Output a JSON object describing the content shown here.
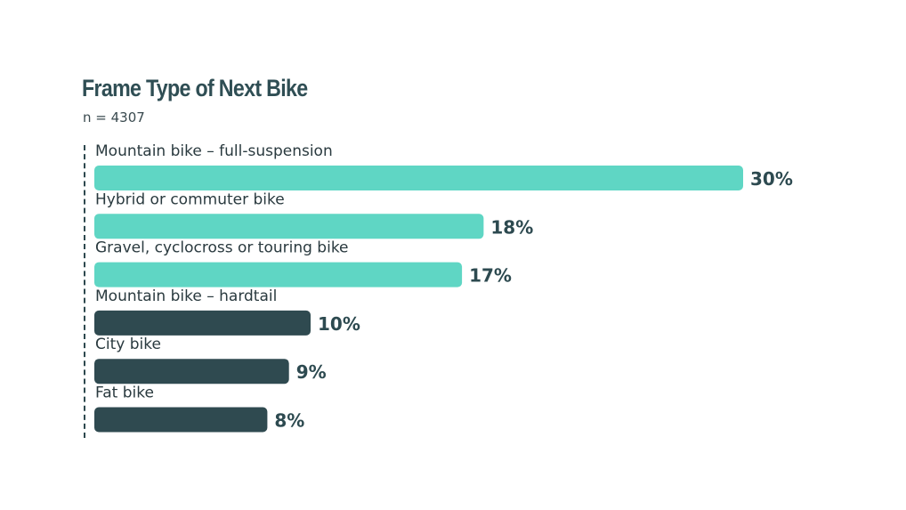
{
  "chart_data": {
    "type": "bar",
    "orientation": "horizontal",
    "title": "Frame Type of Next Bike",
    "subtitle": "n = 4307",
    "categories": [
      "Mountain bike – full-suspension",
      "Hybrid or commuter bike",
      "Gravel, cyclocross or touring bike",
      "Mountain bike – hardtail",
      "City bike",
      "Fat bike"
    ],
    "values": [
      30,
      18,
      17,
      10,
      9,
      8
    ],
    "value_labels": [
      "30%",
      "18%",
      "17%",
      "10%",
      "9%",
      "8%"
    ],
    "bar_colors": [
      "#5fd6c4",
      "#5fd6c4",
      "#5fd6c4",
      "#2f4a50",
      "#2f4a50",
      "#2f4a50"
    ],
    "xlim": [
      0,
      30
    ],
    "grid": false,
    "legend": "none"
  },
  "colors": {
    "accent": "#5fd6c4",
    "dark": "#2f4a50",
    "title": "#2f4e54"
  }
}
